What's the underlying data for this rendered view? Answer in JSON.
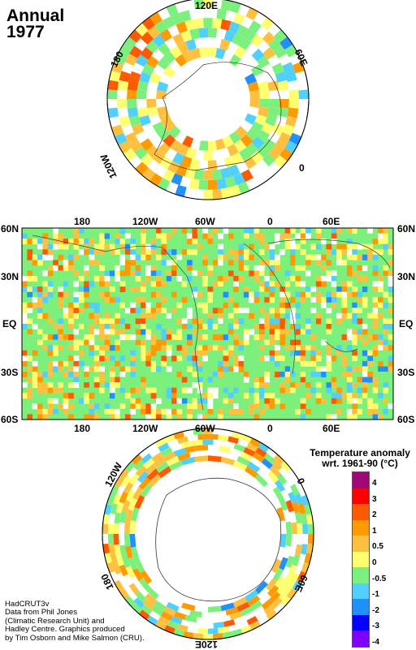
{
  "title": {
    "line1": "Annual",
    "line2": "1977"
  },
  "north_polar": {
    "labels": {
      "top": "120E",
      "right": "60E",
      "right_low": "0",
      "left_low": "120W",
      "left": "180"
    }
  },
  "world_map": {
    "top_lon": [
      "180",
      "120W",
      "60W",
      "0",
      "60E"
    ],
    "bottom_lon": [
      "180",
      "120W",
      "60W",
      "0",
      "60E"
    ],
    "lat_left": [
      "60N",
      "30N",
      "EQ",
      "30S",
      "60S"
    ],
    "lat_right": [
      "60N",
      "30N",
      "EQ",
      "30S",
      "60S"
    ]
  },
  "south_polar": {
    "labels": {
      "left_top": "120W",
      "right_top": "0",
      "left_low": "180",
      "right_low": "60E",
      "bottom": "120E"
    }
  },
  "legend": {
    "title_line1": "Temperature anomaly",
    "title_line2": "wrt. 1961-90  (°C)",
    "ticks": [
      "4",
      "3",
      "2",
      "1",
      "0.5",
      "0",
      "-0.5",
      "-1",
      "-2",
      "-3",
      "-4"
    ],
    "colors": [
      "#a0087a",
      "#ff0000",
      "#ff5a00",
      "#ff9a00",
      "#ffc040",
      "#ffff70",
      "#7cf07c",
      "#50d0ff",
      "#2090ff",
      "#0000ff",
      "#8000ff"
    ]
  },
  "credits": {
    "line1": "HadCRUT3v",
    "line2": "Data from Phil Jones",
    "line3": "(Climatic Research Unit) and",
    "line4": "Hadley Centre.  Graphics produced",
    "line5": "by Tim Osborn and Mike Salmon (CRU)."
  },
  "colors": {
    "green": "#7cf07c",
    "yellow": "#ffff70",
    "orange": "#ffc040",
    "cyan": "#50d0ff"
  }
}
